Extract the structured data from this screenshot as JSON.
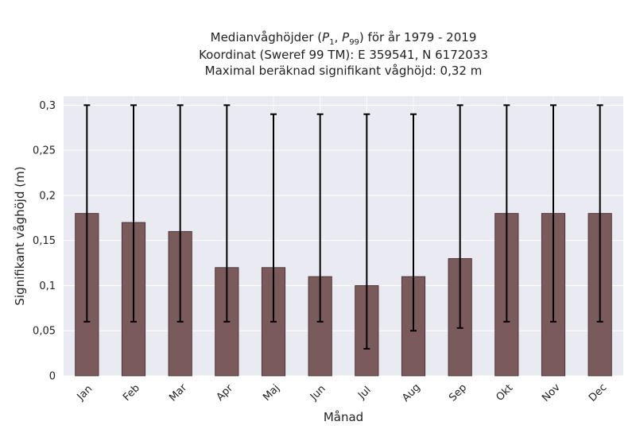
{
  "chart_data": {
    "type": "bar",
    "title_lines": [
      "Medianvåghöjder (P1, P99) för år 1979 - 2019",
      "Koordinat (Sweref 99 TM): E 359541, N 6172033",
      "Maximal beräknad signifikant våghöjd: 0,32 m"
    ],
    "xlabel": "Månad",
    "ylabel": "Signifikant våghöjd (m)",
    "categories": [
      "Jan",
      "Feb",
      "Mar",
      "Apr",
      "Maj",
      "Jun",
      "Jul",
      "Aug",
      "Sep",
      "Okt",
      "Nov",
      "Dec"
    ],
    "values": [
      0.18,
      0.17,
      0.16,
      0.12,
      0.12,
      0.11,
      0.1,
      0.11,
      0.13,
      0.18,
      0.18,
      0.18
    ],
    "p1": [
      0.06,
      0.06,
      0.06,
      0.06,
      0.06,
      0.06,
      0.03,
      0.05,
      0.053,
      0.06,
      0.06,
      0.06
    ],
    "p99": [
      0.3,
      0.3,
      0.3,
      0.3,
      0.29,
      0.29,
      0.29,
      0.29,
      0.3,
      0.3,
      0.3,
      0.3
    ],
    "yticks": [
      0,
      0.05,
      0.1,
      0.15,
      0.2,
      0.25,
      0.3
    ],
    "ytick_labels": [
      "0",
      "0,05",
      "0,1",
      "0,15",
      "0,2",
      "0,25",
      "0,3"
    ],
    "ylim": [
      0,
      0.31
    ],
    "grid": true,
    "colors": {
      "bar": "#7a5a5a",
      "bar_edge": "#3a2a2a",
      "error": "#000000",
      "plot_bg": "#eaeaf2",
      "grid": "#ffffff"
    }
  }
}
